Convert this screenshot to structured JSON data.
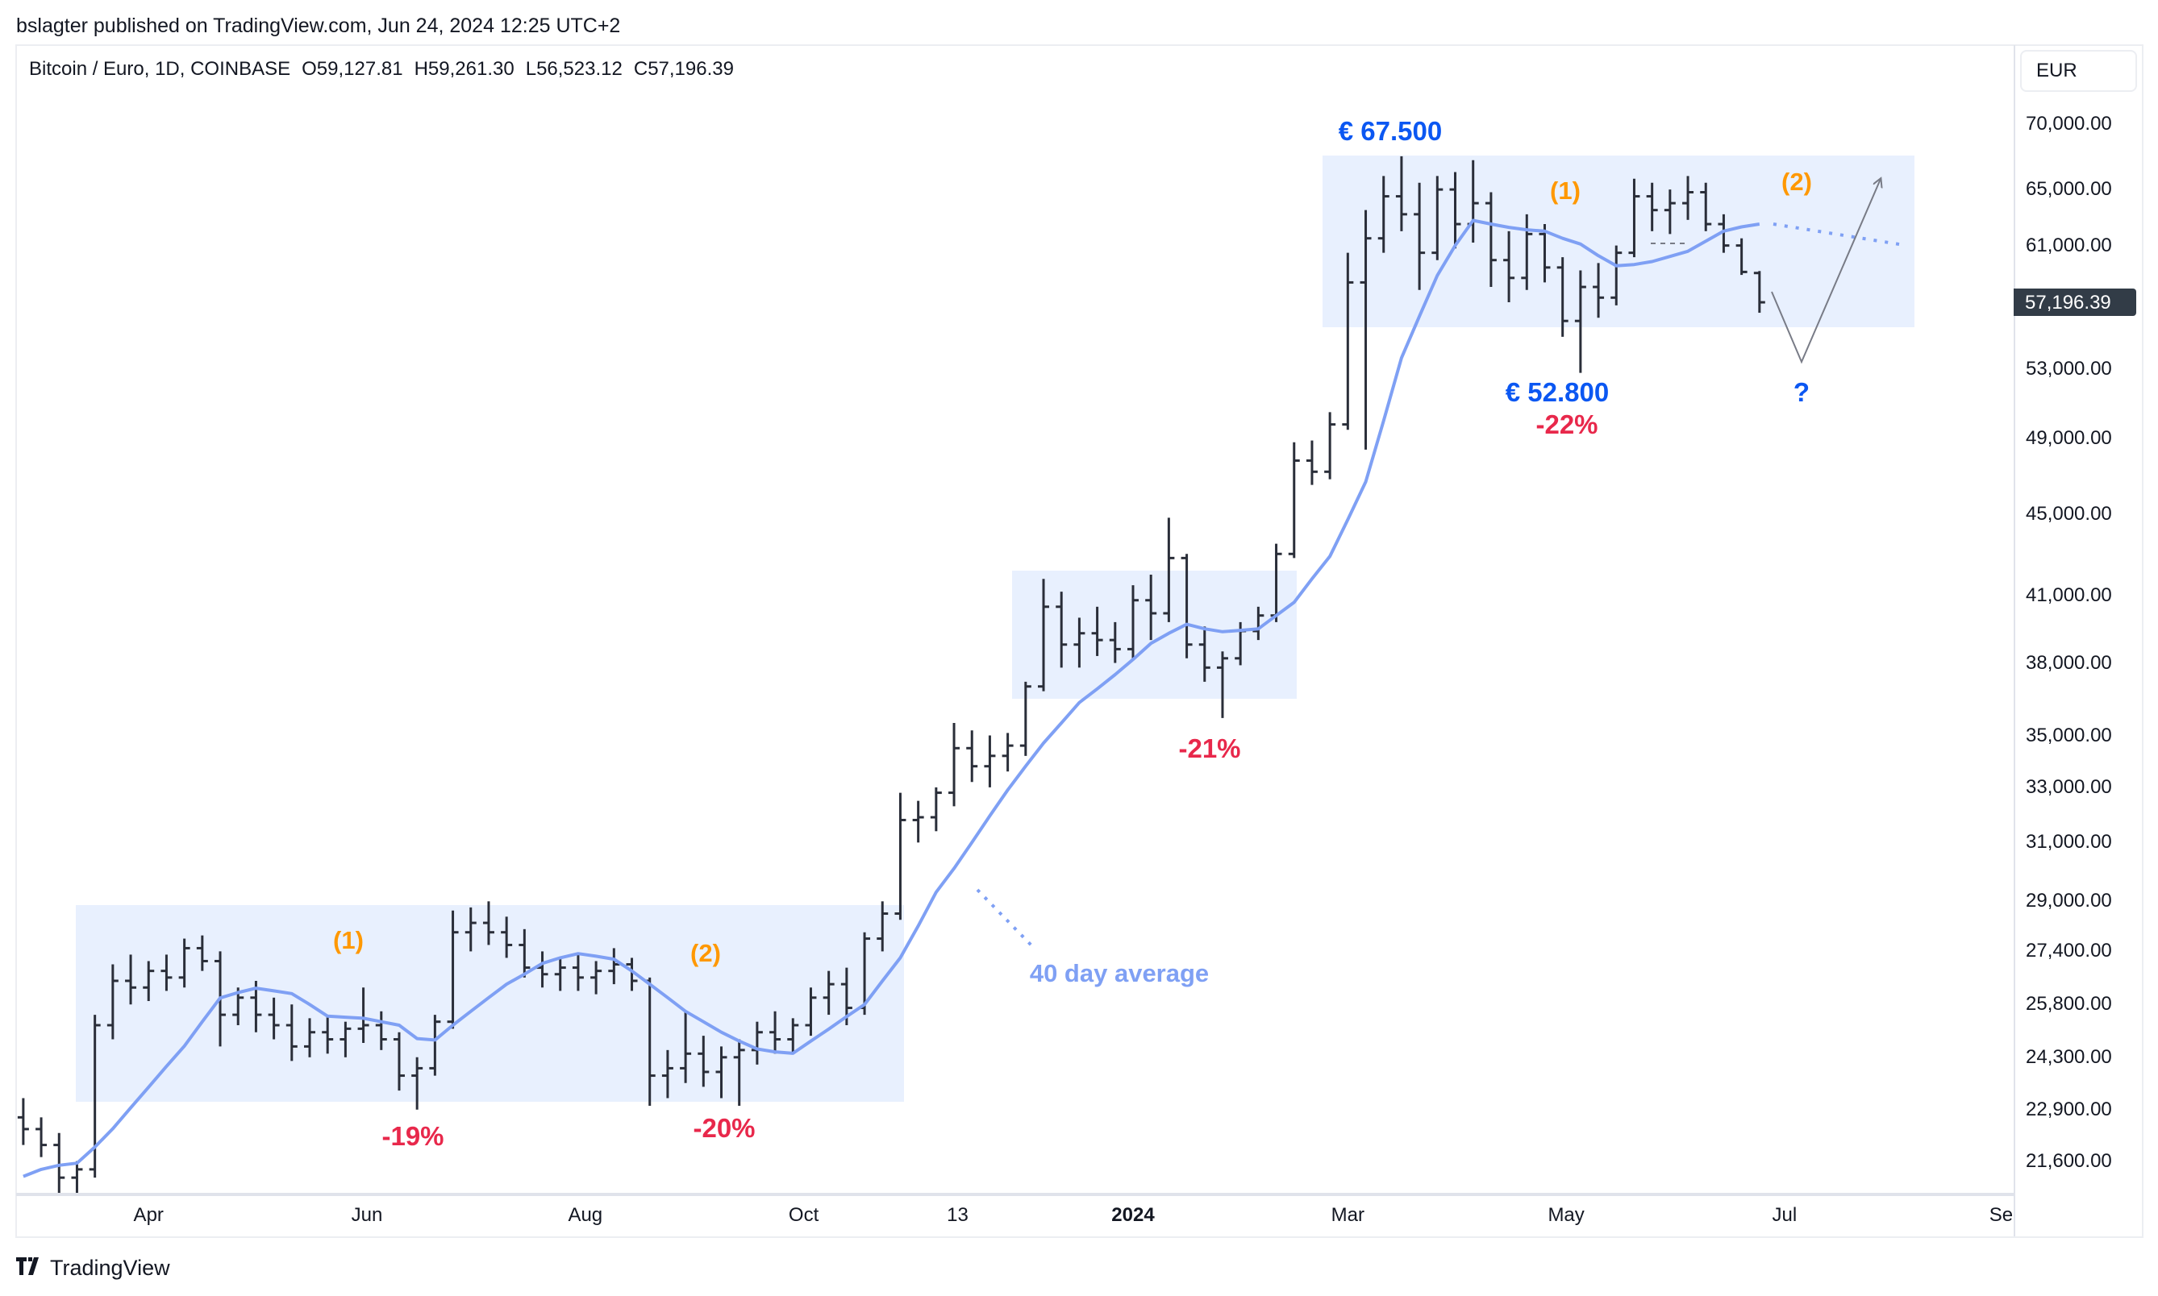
{
  "published": "bslagter published on TradingView.com, Jun 24, 2024 12:25 UTC+2",
  "legend": {
    "symbol": "Bitcoin / Euro, 1D, COINBASE",
    "open_label": "O",
    "open": "59,127.81",
    "high_label": "H",
    "high": "59,261.30",
    "low_label": "L",
    "low": "56,523.12",
    "close_label": "C",
    "close": "57,196.39"
  },
  "currency_button": "EUR",
  "last_price_label": "57,196.39",
  "branding": {
    "logo_mark": "17",
    "name": "TradingView"
  },
  "colors": {
    "bars": "#2a2e39",
    "ma": "#7fa0f4",
    "zone": "#e8f0fe",
    "price_label": "#0b57f2",
    "wave_label": "#ff9800",
    "drawdown": "#e8284b",
    "last_price_bg": "#323c47",
    "arrow": "#787b86"
  },
  "annotations": {
    "top_price": "€ 67.500",
    "low_price": "€ 52.800",
    "wave1_a": "(1)",
    "wave2_a": "(2)",
    "wave1_b": "(1)",
    "wave2_b": "(2)",
    "dd_19": "-19%",
    "dd_20": "-20%",
    "dd_21": "-21%",
    "dd_22": "-22%",
    "question": "?",
    "ma_label": "40 day average"
  },
  "chart_data": {
    "type": "ohlc-bar",
    "y_scale": "log",
    "ylim": [
      20800,
      76560
    ],
    "xlim": [
      "2023-02-23",
      "2024-09-03"
    ],
    "grid": false,
    "y_ticks": [
      {
        "value": 70000,
        "label": "70,000.00"
      },
      {
        "value": 65000,
        "label": "65,000.00"
      },
      {
        "value": 61000,
        "label": "61,000.00"
      },
      {
        "value": 53000,
        "label": "53,000.00"
      },
      {
        "value": 49000,
        "label": "49,000.00"
      },
      {
        "value": 45000,
        "label": "45,000.00"
      },
      {
        "value": 41000,
        "label": "41,000.00"
      },
      {
        "value": 38000,
        "label": "38,000.00"
      },
      {
        "value": 35000,
        "label": "35,000.00"
      },
      {
        "value": 33000,
        "label": "33,000.00"
      },
      {
        "value": 31000,
        "label": "31,000.00"
      },
      {
        "value": 29000,
        "label": "29,000.00"
      },
      {
        "value": 27400,
        "label": "27,400.00"
      },
      {
        "value": 25800,
        "label": "25,800.00"
      },
      {
        "value": 24300,
        "label": "24,300.00"
      },
      {
        "value": 22900,
        "label": "22,900.00"
      },
      {
        "value": 21600,
        "label": "21,600.00"
      }
    ],
    "x_ticks": [
      {
        "date": "2023-04-01",
        "label": "Apr"
      },
      {
        "date": "2023-06-01",
        "label": "Jun"
      },
      {
        "date": "2023-08-01",
        "label": "Aug"
      },
      {
        "date": "2023-10-01",
        "label": "Oct"
      },
      {
        "date": "2023-11-13",
        "label": "13"
      },
      {
        "date": "2024-01-01",
        "label": "2024",
        "bold": true
      },
      {
        "date": "2024-03-01",
        "label": "Mar"
      },
      {
        "date": "2024-05-01",
        "label": "May"
      },
      {
        "date": "2024-07-01",
        "label": "Jul"
      },
      {
        "date": "2024-09-01",
        "label": "Sep"
      }
    ],
    "last_date": "2024-06-24",
    "bar_interval_days": 5,
    "bars_ohlc": [
      [
        22700,
        23200,
        22000,
        22400
      ],
      [
        22400,
        22700,
        21700,
        22000
      ],
      [
        22000,
        22300,
        20800,
        21200
      ],
      [
        21200,
        21600,
        20500,
        21400
      ],
      [
        21400,
        25500,
        21200,
        25200
      ],
      [
        25200,
        27000,
        24800,
        26500
      ],
      [
        26500,
        27300,
        25800,
        26300
      ],
      [
        26300,
        27100,
        25900,
        26800
      ],
      [
        26800,
        27300,
        26200,
        26600
      ],
      [
        26600,
        27800,
        26300,
        27500
      ],
      [
        27500,
        27900,
        26800,
        27100
      ],
      [
        27100,
        27400,
        24600,
        25500
      ],
      [
        25500,
        26300,
        25200,
        26000
      ],
      [
        26000,
        26500,
        25000,
        25500
      ],
      [
        25500,
        26000,
        24800,
        25200
      ],
      [
        25200,
        25800,
        24200,
        24600
      ],
      [
        24600,
        25400,
        24300,
        25000
      ],
      [
        25000,
        25500,
        24400,
        24800
      ],
      [
        24800,
        25300,
        24300,
        25100
      ],
      [
        25100,
        26300,
        24700,
        25200
      ],
      [
        25200,
        25600,
        24500,
        24800
      ],
      [
        24800,
        25000,
        23400,
        23800
      ],
      [
        23800,
        24300,
        22900,
        24000
      ],
      [
        24000,
        25500,
        23800,
        25300
      ],
      [
        25300,
        28700,
        25100,
        28000
      ],
      [
        28000,
        28800,
        27400,
        28300
      ],
      [
        28300,
        29000,
        27600,
        28000
      ],
      [
        28000,
        28500,
        27200,
        27600
      ],
      [
        27600,
        28100,
        26600,
        26900
      ],
      [
        26900,
        27400,
        26300,
        26700
      ],
      [
        26700,
        27200,
        26200,
        26900
      ],
      [
        26900,
        27300,
        26200,
        26600
      ],
      [
        26600,
        27100,
        26100,
        26800
      ],
      [
        26800,
        27500,
        26400,
        27000
      ],
      [
        27000,
        27200,
        26200,
        26500
      ],
      [
        26500,
        26600,
        23000,
        23800
      ],
      [
        23800,
        24500,
        23200,
        24000
      ],
      [
        24000,
        25600,
        23600,
        24400
      ],
      [
        24400,
        24900,
        23500,
        23900
      ],
      [
        23900,
        24600,
        23200,
        24300
      ],
      [
        24300,
        24800,
        23000,
        24500
      ],
      [
        24500,
        25300,
        24100,
        25000
      ],
      [
        25000,
        25600,
        24400,
        24800
      ],
      [
        24800,
        25400,
        24400,
        25200
      ],
      [
        25200,
        26300,
        24900,
        26000
      ],
      [
        26000,
        26800,
        25500,
        26400
      ],
      [
        26400,
        26900,
        25200,
        25700
      ],
      [
        25700,
        28000,
        25500,
        27800
      ],
      [
        27800,
        29000,
        27400,
        28600
      ],
      [
        28600,
        32800,
        28400,
        31800
      ],
      [
        31800,
        32500,
        31000,
        31900
      ],
      [
        31900,
        33000,
        31400,
        32800
      ],
      [
        32800,
        35500,
        32300,
        34500
      ],
      [
        34500,
        35200,
        33200,
        33800
      ],
      [
        33800,
        35000,
        33000,
        34200
      ],
      [
        34200,
        35100,
        33600,
        34600
      ],
      [
        34600,
        37200,
        34200,
        37000
      ],
      [
        37000,
        41800,
        36800,
        40500
      ],
      [
        40500,
        41200,
        37800,
        38800
      ],
      [
        38800,
        40000,
        37800,
        39300
      ],
      [
        39300,
        40500,
        38300,
        39000
      ],
      [
        39000,
        39800,
        38000,
        38600
      ],
      [
        38600,
        41500,
        38200,
        40800
      ],
      [
        40800,
        42000,
        39000,
        40200
      ],
      [
        40200,
        44800,
        39800,
        42800
      ],
      [
        42800,
        43000,
        38200,
        38800
      ],
      [
        38800,
        39600,
        37200,
        37800
      ],
      [
        37800,
        38500,
        35700,
        38200
      ],
      [
        38200,
        39800,
        37900,
        39400
      ],
      [
        39400,
        40500,
        39000,
        40100
      ],
      [
        40100,
        43500,
        39800,
        43000
      ],
      [
        43000,
        48800,
        42800,
        47800
      ],
      [
        47800,
        48900,
        46500,
        47200
      ],
      [
        47200,
        50500,
        46800,
        49800
      ],
      [
        49800,
        60500,
        49500,
        58500
      ],
      [
        58500,
        63500,
        48400,
        61500
      ],
      [
        61500,
        66000,
        60500,
        64500
      ],
      [
        64500,
        67500,
        62000,
        63200
      ],
      [
        63200,
        65500,
        58000,
        60500
      ],
      [
        60500,
        66000,
        60000,
        65000
      ],
      [
        65000,
        66300,
        60800,
        62500
      ],
      [
        62500,
        67200,
        61200,
        64000
      ],
      [
        64000,
        64800,
        58200,
        60000
      ],
      [
        60000,
        62000,
        57200,
        58800
      ],
      [
        58800,
        63200,
        58000,
        61800
      ],
      [
        61800,
        62500,
        58500,
        59500
      ],
      [
        59500,
        60200,
        55000,
        56000
      ],
      [
        56000,
        59300,
        52800,
        58200
      ],
      [
        58200,
        59800,
        56200,
        57500
      ],
      [
        57500,
        61000,
        57000,
        60500
      ],
      [
        60500,
        65800,
        60200,
        64500
      ],
      [
        64500,
        65500,
        62000,
        63500
      ],
      [
        63500,
        65000,
        61800,
        64000
      ],
      [
        64000,
        66000,
        62800,
        64800
      ],
      [
        64800,
        65500,
        62000,
        62500
      ],
      [
        62500,
        63200,
        60500,
        61000
      ],
      [
        61000,
        61500,
        59000,
        59200
      ],
      [
        59127.81,
        59261.3,
        56523.12,
        57196.39
      ]
    ],
    "ma40": [
      21230,
      21400,
      21500,
      21550,
      21950,
      22410,
      22950,
      23490,
      24050,
      24610,
      25300,
      25990,
      26150,
      26280,
      26200,
      26120,
      25800,
      25460,
      25430,
      25400,
      25300,
      25200,
      24820,
      24780,
      25200,
      25600,
      26000,
      26400,
      26700,
      27030,
      27200,
      27330,
      27250,
      27160,
      26800,
      26400,
      26000,
      25600,
      25300,
      25000,
      24750,
      24530,
      24450,
      24410,
      24750,
      25090,
      25450,
      25800,
      26500,
      27200,
      28200,
      29300,
      30100,
      31000,
      31950,
      32900,
      33800,
      34700,
      35500,
      36330,
      36900,
      37500,
      38150,
      38850,
      39300,
      39700,
      39500,
      39370,
      39430,
      39500,
      40100,
      40700,
      41800,
      42880,
      44700,
      46660,
      50000,
      53700,
      56300,
      58960,
      61000,
      62760,
      62500,
      62270,
      62100,
      62000,
      61500,
      61100,
      60300,
      59620,
      59700,
      59900,
      60250,
      60600,
      61300,
      62000,
      62300,
      62500
    ]
  }
}
